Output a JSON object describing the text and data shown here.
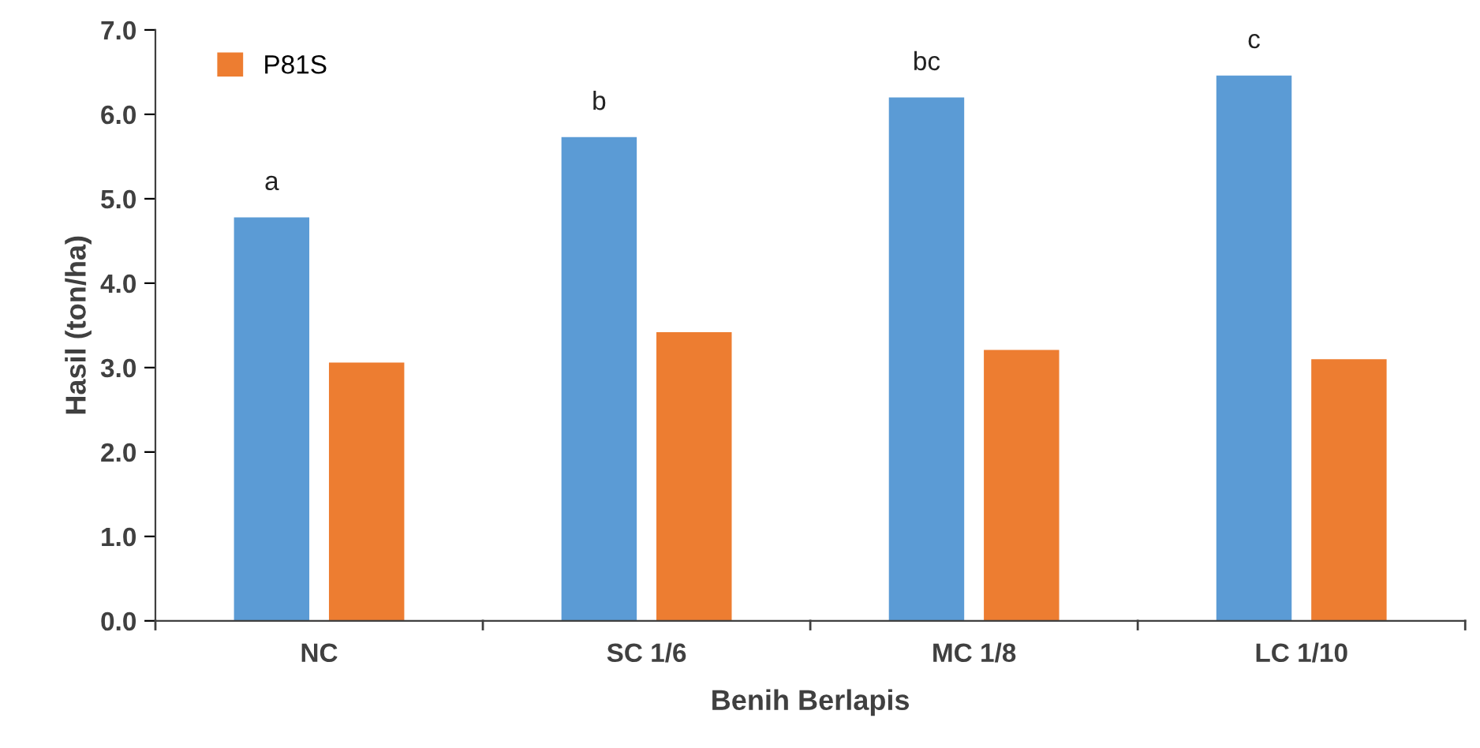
{
  "chart_data": {
    "type": "bar",
    "xlabel": "Benih Berlapis",
    "ylabel": "Hasil (ton/ha)",
    "categories": [
      "NC",
      "SC 1/6",
      "MC 1/8",
      "LC 1/10"
    ],
    "series": [
      {
        "color": "#5b9bd5",
        "values": [
          4.78,
          5.73,
          6.2,
          6.46
        ]
      },
      {
        "name": "P81S",
        "color": "#ed7d31",
        "values": [
          3.06,
          3.42,
          3.21,
          3.1
        ]
      }
    ],
    "ylim": [
      0,
      7
    ],
    "yticks": [
      {
        "value": 0,
        "label": "0.0"
      },
      {
        "value": 1,
        "label": "1.0"
      },
      {
        "value": 2,
        "label": "2.0"
      },
      {
        "value": 3,
        "label": "3.0"
      },
      {
        "value": 4,
        "label": "4.0"
      },
      {
        "value": 5,
        "label": "5.0"
      },
      {
        "value": 6,
        "label": "6.0"
      },
      {
        "value": 7,
        "label": "7.0"
      }
    ],
    "annotations": [
      "a",
      "b",
      "bc",
      "c"
    ],
    "grid": false,
    "legend": "top left"
  }
}
